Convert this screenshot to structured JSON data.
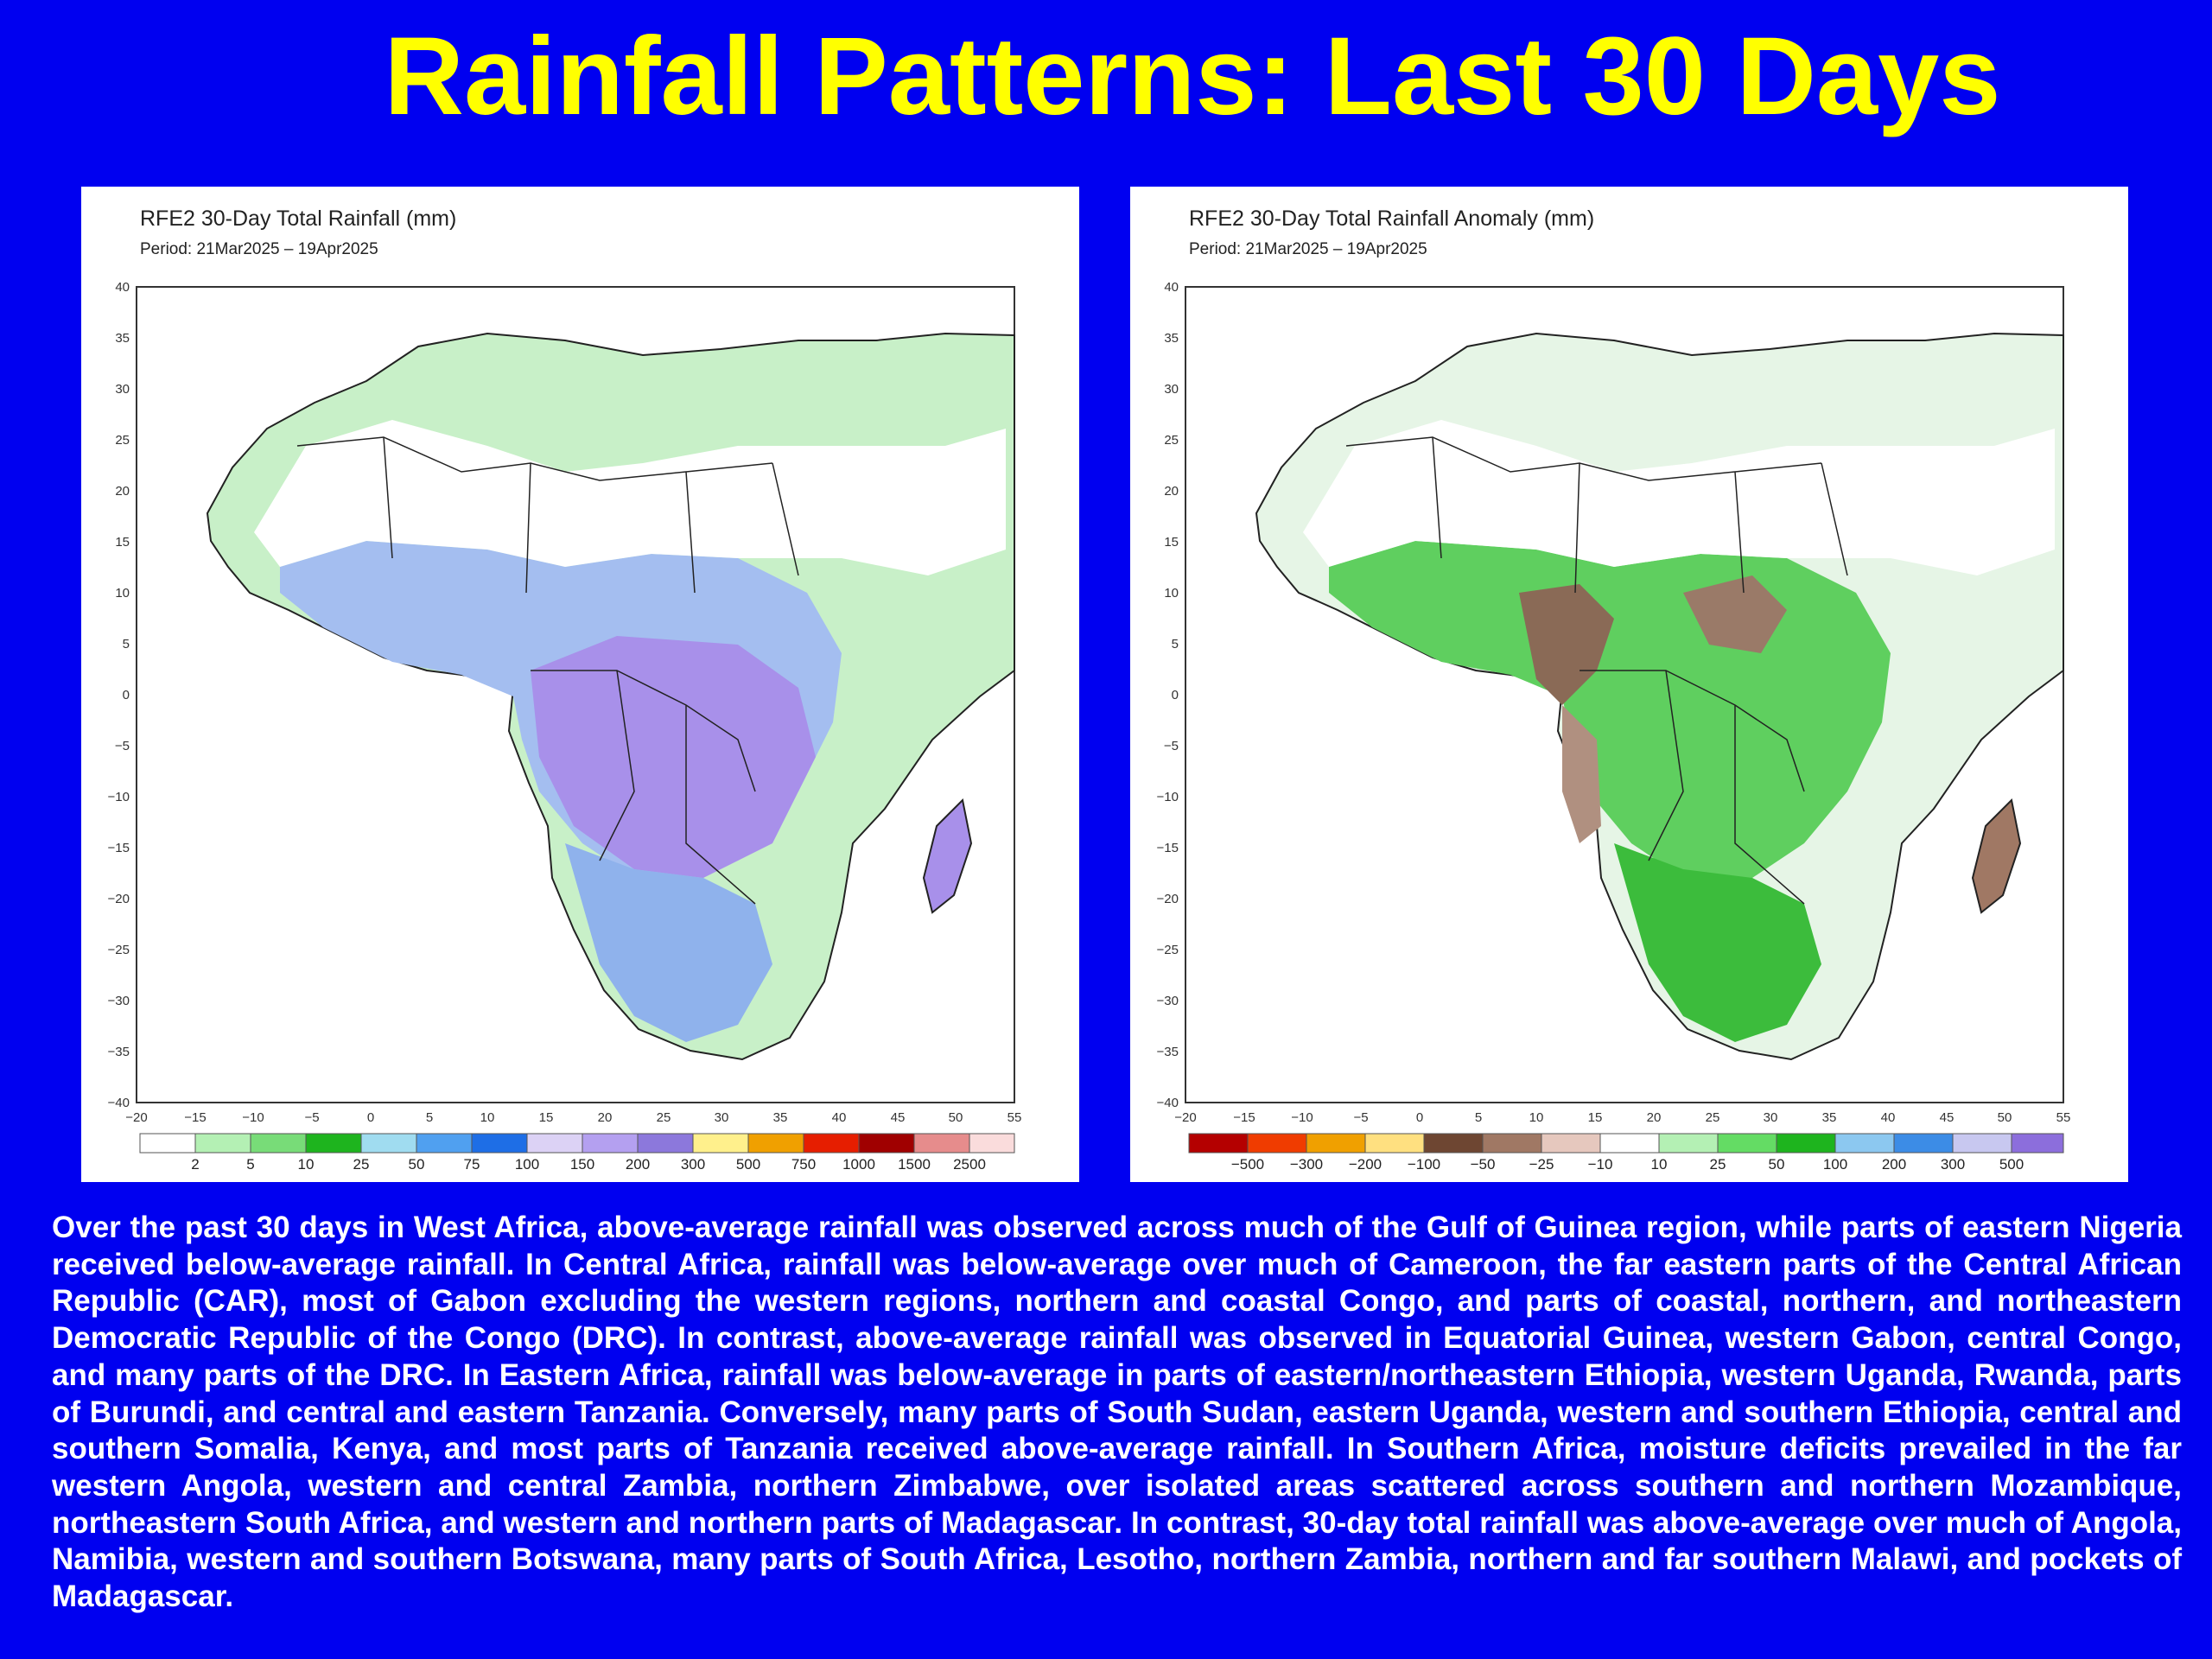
{
  "slide": {
    "title": "Rainfall Patterns: Last 30 Days",
    "title_color": "#ffff00",
    "background_color": "#0000f0"
  },
  "maps": [
    {
      "id": "total",
      "title": "RFE2 30-Day Total Rainfall (mm)",
      "period": "Period: 21Mar2025 – 19Apr2025",
      "lat_ticks": [
        "40",
        "35",
        "30",
        "25",
        "20",
        "15",
        "10",
        "5",
        "0",
        "−5",
        "−10",
        "−15",
        "−20",
        "−25",
        "−30",
        "−35",
        "−40"
      ],
      "lon_ticks": [
        "−20",
        "−15",
        "−10",
        "−5",
        "0",
        "5",
        "10",
        "15",
        "20",
        "25",
        "30",
        "35",
        "40",
        "45",
        "50",
        "55"
      ],
      "legend_labels": [
        "2",
        "5",
        "10",
        "25",
        "50",
        "75",
        "100",
        "150",
        "200",
        "300",
        "500",
        "750",
        "1000",
        "1500",
        "2500"
      ],
      "legend_colors": [
        "#ffffff",
        "#b4f0b4",
        "#78dc78",
        "#1eb41e",
        "#a0dcf0",
        "#50a0f0",
        "#1e6ee6",
        "#dcd2f5",
        "#b4a0f0",
        "#8c78dc",
        "#fff08c",
        "#f0a000",
        "#e61e00",
        "#a00000",
        "#e68c8c",
        "#fadcdc"
      ]
    },
    {
      "id": "anomaly",
      "title": "RFE2 30-Day Total Rainfall Anomaly (mm)",
      "period": "Period: 21Mar2025 – 19Apr2025",
      "lat_ticks": [
        "40",
        "35",
        "30",
        "25",
        "20",
        "15",
        "10",
        "5",
        "0",
        "−5",
        "−10",
        "−15",
        "−20",
        "−25",
        "−30",
        "−35",
        "−40"
      ],
      "lon_ticks": [
        "−20",
        "−15",
        "−10",
        "−5",
        "0",
        "5",
        "10",
        "15",
        "20",
        "25",
        "30",
        "35",
        "40",
        "45",
        "50",
        "55"
      ],
      "legend_labels": [
        "−500",
        "−300",
        "−200",
        "−100",
        "−50",
        "−25",
        "−10",
        "10",
        "25",
        "50",
        "100",
        "200",
        "300",
        "500"
      ],
      "legend_colors": [
        "#b40000",
        "#f03c00",
        "#f0a000",
        "#ffe080",
        "#6e4632",
        "#a07864",
        "#e6c8be",
        "#ffffff",
        "#b4f0b4",
        "#64dc64",
        "#1eb41e",
        "#8cc8f0",
        "#3c8ce6",
        "#c8c8f0",
        "#8c6edc"
      ]
    }
  ],
  "summary": "Over the past 30 days in West Africa, above-average rainfall was observed across much of the Gulf of Guinea region, while parts of eastern Nigeria received below-average rainfall. In Central Africa, rainfall was below-average over much of Cameroon, the far eastern parts of the Central African Republic (CAR), most of Gabon excluding the western regions, northern and coastal Congo, and parts of coastal, northern, and northeastern Democratic Republic of the Congo (DRC). In contrast, above-average rainfall was observed in Equatorial Guinea, western Gabon, central Congo, and many parts of the DRC. In Eastern Africa, rainfall was below-average in parts of eastern/northeastern Ethiopia, western Uganda, Rwanda, parts of Burundi, and central and eastern Tanzania. Conversely, many parts of South Sudan, eastern Uganda, western and southern Ethiopia, central and southern Somalia, Kenya, and most parts of Tanzania received above-average rainfall. In Southern Africa, moisture deficits prevailed in the far western Angola, western and central Zambia, northern Zimbabwe, over isolated areas scattered across southern and northern Mozambique, northeastern South Africa, and western and northern parts of Madagascar. In contrast, 30-day total rainfall was above-average over much of Angola, Namibia, western and southern Botswana, many parts of South Africa, Lesotho, northern Zambia, northern and far southern Malawi, and pockets of Madagascar."
}
